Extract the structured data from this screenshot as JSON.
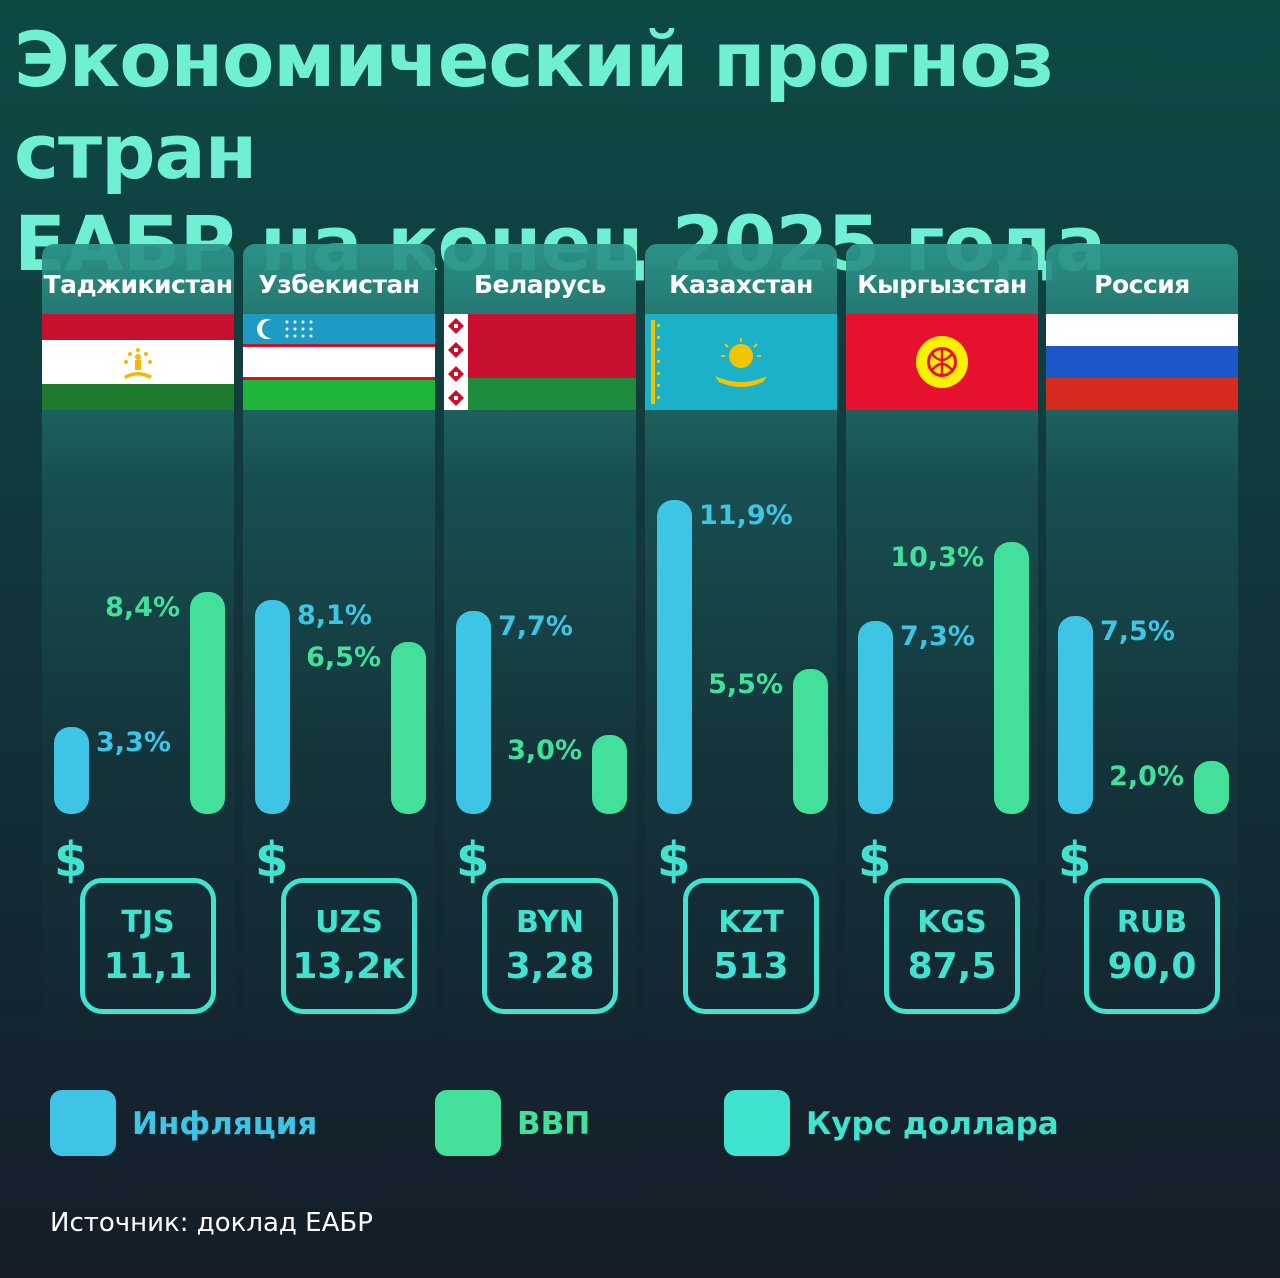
{
  "title_line1": "Экономический прогноз стран",
  "title_line2": "ЕАБР на конец 2025 года",
  "colors": {
    "inflation": "#3ec5e6",
    "gdp": "#42e09b",
    "currency": "#3fe3cf"
  },
  "chart_data": {
    "type": "bar",
    "title": "Экономический прогноз стран ЕАБР на конец 2025 года",
    "categories": [
      "Таджикистан",
      "Узбекистан",
      "Беларусь",
      "Казахстан",
      "Кыргызстан",
      "Россия"
    ],
    "series": [
      {
        "name": "Инфляция",
        "values": [
          3.3,
          8.1,
          7.7,
          11.9,
          7.3,
          7.5
        ],
        "labels": [
          "3,3%",
          "8,1%",
          "7,7%",
          "11,9%",
          "7,3%",
          "7,5%"
        ]
      },
      {
        "name": "ВВП",
        "values": [
          8.4,
          6.5,
          3.0,
          5.5,
          10.3,
          2.0
        ],
        "labels": [
          "8,4%",
          "6,5%",
          "3,0%",
          "5,5%",
          "10,3%",
          "2,0%"
        ]
      }
    ],
    "currency_rate": [
      {
        "code": "TJS",
        "value": "11,1"
      },
      {
        "code": "UZS",
        "value": "13,2к"
      },
      {
        "code": "BYN",
        "value": "3,28"
      },
      {
        "code": "KZT",
        "value": "513"
      },
      {
        "code": "KGS",
        "value": "87,5"
      },
      {
        "code": "RUB",
        "value": "90,0"
      }
    ],
    "ylim": [
      0,
      12
    ]
  },
  "countries": [
    {
      "name": "Таджикистан",
      "flag": "tajikistan-flag-icon"
    },
    {
      "name": "Узбекистан",
      "flag": "uzbekistan-flag-icon"
    },
    {
      "name": "Беларусь",
      "flag": "belarus-flag-icon"
    },
    {
      "name": "Казахстан",
      "flag": "kazakhstan-flag-icon"
    },
    {
      "name": "Кыргызстан",
      "flag": "kyrgyzstan-flag-icon"
    },
    {
      "name": "Россия",
      "flag": "russia-flag-icon"
    }
  ],
  "dollar_symbol": "$",
  "legend": [
    {
      "label": "Инфляция",
      "color": "#3ec5e6"
    },
    {
      "label": "ВВП",
      "color": "#42e09b"
    },
    {
      "label": "Курс доллара",
      "color": "#3fe3cf"
    }
  ],
  "source": "Источник: доклад ЕАБР"
}
